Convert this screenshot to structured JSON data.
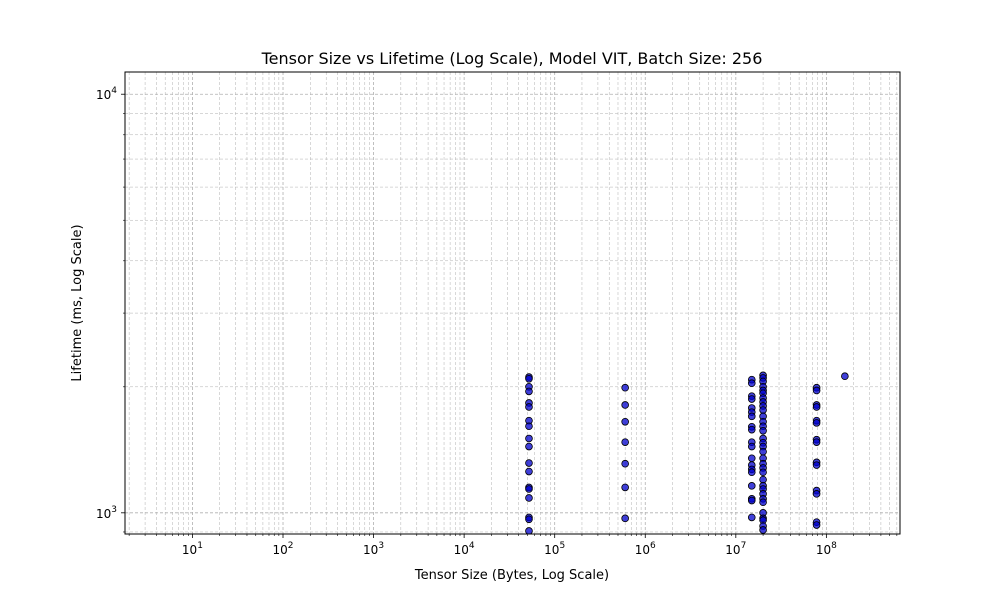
{
  "chart_data": {
    "type": "scatter",
    "title": "Tensor Size vs Lifetime (Log Scale), Model VIT, Batch Size: 256",
    "xlabel": "Tensor Size (Bytes, Log Scale)",
    "ylabel": "Lifetime (ms, Log Scale)",
    "xscale": "log",
    "yscale": "log",
    "xlim": [
      1.8,
      650000000
    ],
    "ylim": [
      890,
      11300
    ],
    "grid": true,
    "grid_minor": true,
    "marker_color": "#0000cc",
    "marker_edge_color": "#000000",
    "x_ticks": [
      {
        "base": "10",
        "exp": "1"
      },
      {
        "base": "10",
        "exp": "2"
      },
      {
        "base": "10",
        "exp": "3"
      },
      {
        "base": "10",
        "exp": "4"
      },
      {
        "base": "10",
        "exp": "5"
      },
      {
        "base": "10",
        "exp": "6"
      },
      {
        "base": "10",
        "exp": "7"
      },
      {
        "base": "10",
        "exp": "8"
      }
    ],
    "y_ticks": [
      {
        "base": "10",
        "exp": "3"
      },
      {
        "base": "10",
        "exp": "4"
      }
    ],
    "points": [
      {
        "x": 52000,
        "y": 2110
      },
      {
        "x": 52000,
        "y": 2090
      },
      {
        "x": 52000,
        "y": 2000
      },
      {
        "x": 52000,
        "y": 1950
      },
      {
        "x": 52000,
        "y": 1830
      },
      {
        "x": 52000,
        "y": 1790
      },
      {
        "x": 52000,
        "y": 1660
      },
      {
        "x": 52000,
        "y": 1610
      },
      {
        "x": 52000,
        "y": 1505
      },
      {
        "x": 52000,
        "y": 1440
      },
      {
        "x": 52000,
        "y": 1315
      },
      {
        "x": 52000,
        "y": 1255
      },
      {
        "x": 52000,
        "y": 1150
      },
      {
        "x": 52000,
        "y": 1140
      },
      {
        "x": 52000,
        "y": 1085
      },
      {
        "x": 52000,
        "y": 975
      },
      {
        "x": 52000,
        "y": 965
      },
      {
        "x": 52000,
        "y": 905
      },
      {
        "x": 600000,
        "y": 1990
      },
      {
        "x": 600000,
        "y": 1810
      },
      {
        "x": 600000,
        "y": 1650
      },
      {
        "x": 600000,
        "y": 1475
      },
      {
        "x": 600000,
        "y": 1310
      },
      {
        "x": 600000,
        "y": 1150
      },
      {
        "x": 600000,
        "y": 970
      },
      {
        "x": 15000000,
        "y": 2080
      },
      {
        "x": 15000000,
        "y": 2040
      },
      {
        "x": 15000000,
        "y": 1900
      },
      {
        "x": 15000000,
        "y": 1870
      },
      {
        "x": 15000000,
        "y": 1780
      },
      {
        "x": 15000000,
        "y": 1740
      },
      {
        "x": 15000000,
        "y": 1700
      },
      {
        "x": 15000000,
        "y": 1605
      },
      {
        "x": 15000000,
        "y": 1580
      },
      {
        "x": 15000000,
        "y": 1475
      },
      {
        "x": 15000000,
        "y": 1440
      },
      {
        "x": 15000000,
        "y": 1350
      },
      {
        "x": 15000000,
        "y": 1300
      },
      {
        "x": 15000000,
        "y": 1270
      },
      {
        "x": 15000000,
        "y": 1250
      },
      {
        "x": 15000000,
        "y": 1160
      },
      {
        "x": 15000000,
        "y": 1080
      },
      {
        "x": 15000000,
        "y": 1070
      },
      {
        "x": 15000000,
        "y": 975
      },
      {
        "x": 20000000,
        "y": 2130
      },
      {
        "x": 20000000,
        "y": 2100
      },
      {
        "x": 20000000,
        "y": 2060
      },
      {
        "x": 20000000,
        "y": 2000
      },
      {
        "x": 20000000,
        "y": 1960
      },
      {
        "x": 20000000,
        "y": 1930
      },
      {
        "x": 20000000,
        "y": 1880
      },
      {
        "x": 20000000,
        "y": 1840
      },
      {
        "x": 20000000,
        "y": 1800
      },
      {
        "x": 20000000,
        "y": 1760
      },
      {
        "x": 20000000,
        "y": 1700
      },
      {
        "x": 20000000,
        "y": 1650
      },
      {
        "x": 20000000,
        "y": 1610
      },
      {
        "x": 20000000,
        "y": 1570
      },
      {
        "x": 20000000,
        "y": 1505
      },
      {
        "x": 20000000,
        "y": 1470
      },
      {
        "x": 20000000,
        "y": 1440
      },
      {
        "x": 20000000,
        "y": 1400
      },
      {
        "x": 20000000,
        "y": 1350
      },
      {
        "x": 20000000,
        "y": 1310
      },
      {
        "x": 20000000,
        "y": 1280
      },
      {
        "x": 20000000,
        "y": 1250
      },
      {
        "x": 20000000,
        "y": 1200
      },
      {
        "x": 20000000,
        "y": 1160
      },
      {
        "x": 20000000,
        "y": 1140
      },
      {
        "x": 20000000,
        "y": 1110
      },
      {
        "x": 20000000,
        "y": 1080
      },
      {
        "x": 20000000,
        "y": 1060
      },
      {
        "x": 20000000,
        "y": 1000
      },
      {
        "x": 20000000,
        "y": 970
      },
      {
        "x": 20000000,
        "y": 960
      },
      {
        "x": 20000000,
        "y": 930
      },
      {
        "x": 20000000,
        "y": 910
      },
      {
        "x": 78000000,
        "y": 1990
      },
      {
        "x": 78000000,
        "y": 1960
      },
      {
        "x": 78000000,
        "y": 1810
      },
      {
        "x": 78000000,
        "y": 1790
      },
      {
        "x": 78000000,
        "y": 1660
      },
      {
        "x": 78000000,
        "y": 1640
      },
      {
        "x": 78000000,
        "y": 1495
      },
      {
        "x": 78000000,
        "y": 1475
      },
      {
        "x": 78000000,
        "y": 1320
      },
      {
        "x": 78000000,
        "y": 1300
      },
      {
        "x": 78000000,
        "y": 1130
      },
      {
        "x": 78000000,
        "y": 1110
      },
      {
        "x": 78000000,
        "y": 950
      },
      {
        "x": 78000000,
        "y": 935
      },
      {
        "x": 160000000,
        "y": 2120
      }
    ]
  }
}
